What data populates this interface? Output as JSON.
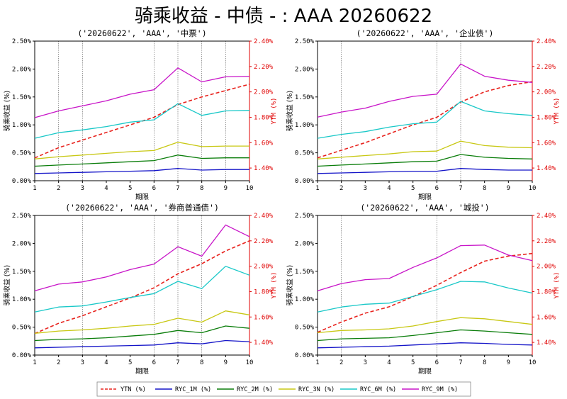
{
  "title": "骑乘收益 - 中债 - : AAA 20260622",
  "colors": {
    "YTN (%)": "#e8231e",
    "RYC_1M (%)": "#1414c8",
    "RYC_2M (%)": "#0a7d0a",
    "RYC_3N (%)": "#c8c814",
    "RYC_6M (%)": "#19c8c8",
    "RYC_9M (%)": "#c814c8"
  },
  "legend": [
    {
      "label": "YTN (%)",
      "style": "dashed"
    },
    {
      "label": "RYC_1M (%)",
      "style": "solid"
    },
    {
      "label": "RYC_2M (%)",
      "style": "solid"
    },
    {
      "label": "RYC_3N (%)",
      "style": "solid"
    },
    {
      "label": "RYC_6M (%)",
      "style": "solid"
    },
    {
      "label": "RYC_9M (%)",
      "style": "solid"
    }
  ],
  "chart_data": [
    {
      "type": "line",
      "title": "('20260622', 'AAA', '中票')",
      "xlabel": "期限",
      "ylabel_left": "骑乘收益 (%)",
      "ylabel_right": "YTM (%)",
      "x": [
        1,
        2,
        3,
        4,
        5,
        6,
        7,
        8,
        9,
        10
      ],
      "xlim": [
        1,
        10
      ],
      "ylim_left": [
        0,
        2.5
      ],
      "ylim_right": [
        1.3,
        2.4
      ],
      "left_ticks": [
        "0.00%",
        "0.50%",
        "1.00%",
        "1.50%",
        "2.00%",
        "2.50%"
      ],
      "right_ticks": [
        "1.40%",
        "1.60%",
        "1.80%",
        "2.00%",
        "2.20%",
        "2.40%"
      ],
      "vlines": [
        2,
        3,
        6,
        7,
        8,
        9
      ],
      "series": [
        {
          "name": "YTN (%)",
          "axis": "right",
          "values": [
            1.48,
            1.56,
            1.62,
            1.68,
            1.74,
            1.8,
            1.9,
            1.96,
            2.01,
            2.06
          ]
        },
        {
          "name": "RYC_1M (%)",
          "axis": "left",
          "values": [
            0.13,
            0.14,
            0.15,
            0.16,
            0.17,
            0.18,
            0.22,
            0.19,
            0.2,
            0.2
          ]
        },
        {
          "name": "RYC_2M (%)",
          "axis": "left",
          "values": [
            0.26,
            0.28,
            0.3,
            0.32,
            0.34,
            0.36,
            0.46,
            0.4,
            0.41,
            0.41
          ]
        },
        {
          "name": "RYC_3N (%)",
          "axis": "left",
          "values": [
            0.39,
            0.43,
            0.46,
            0.49,
            0.52,
            0.54,
            0.69,
            0.61,
            0.62,
            0.62
          ]
        },
        {
          "name": "RYC_6M (%)",
          "axis": "left",
          "values": [
            0.76,
            0.86,
            0.91,
            0.97,
            1.05,
            1.09,
            1.38,
            1.17,
            1.25,
            1.26
          ]
        },
        {
          "name": "RYC_9M (%)",
          "axis": "left",
          "values": [
            1.13,
            1.25,
            1.34,
            1.43,
            1.55,
            1.63,
            2.02,
            1.77,
            1.86,
            1.87
          ]
        }
      ]
    },
    {
      "type": "line",
      "title": "('20260622', 'AAA', '企业债')",
      "xlabel": "期限",
      "ylabel_left": "骑乘收益 (%)",
      "ylabel_right": "YTM (%)",
      "x": [
        1,
        2,
        3,
        4,
        5,
        6,
        7,
        8,
        9,
        10
      ],
      "xlim": [
        1,
        10
      ],
      "ylim_left": [
        0,
        2.5
      ],
      "ylim_right": [
        1.3,
        2.4
      ],
      "left_ticks": [
        "0.00%",
        "0.50%",
        "1.00%",
        "1.50%",
        "2.00%",
        "2.50%"
      ],
      "right_ticks": [
        "1.40%",
        "1.60%",
        "1.80%",
        "2.00%",
        "2.20%",
        "2.40%"
      ],
      "vlines": [
        2,
        6,
        7
      ],
      "series": [
        {
          "name": "YTN (%)",
          "axis": "right",
          "values": [
            1.48,
            1.54,
            1.6,
            1.67,
            1.74,
            1.8,
            1.92,
            2.0,
            2.05,
            2.08
          ]
        },
        {
          "name": "RYC_1M (%)",
          "axis": "left",
          "values": [
            0.13,
            0.14,
            0.15,
            0.16,
            0.17,
            0.17,
            0.22,
            0.2,
            0.19,
            0.19
          ]
        },
        {
          "name": "RYC_2M (%)",
          "axis": "left",
          "values": [
            0.26,
            0.28,
            0.3,
            0.32,
            0.34,
            0.35,
            0.47,
            0.42,
            0.4,
            0.39
          ]
        },
        {
          "name": "RYC_3N (%)",
          "axis": "left",
          "values": [
            0.39,
            0.42,
            0.45,
            0.48,
            0.52,
            0.53,
            0.71,
            0.63,
            0.6,
            0.59
          ]
        },
        {
          "name": "RYC_6M (%)",
          "axis": "left",
          "values": [
            0.76,
            0.83,
            0.88,
            0.96,
            1.02,
            1.05,
            1.42,
            1.25,
            1.2,
            1.17
          ]
        },
        {
          "name": "RYC_9M (%)",
          "axis": "left",
          "values": [
            1.14,
            1.23,
            1.3,
            1.42,
            1.51,
            1.55,
            2.09,
            1.87,
            1.8,
            1.76
          ]
        }
      ]
    },
    {
      "type": "line",
      "title": "('20260622', 'AAA', '券商普通债')",
      "xlabel": "期限",
      "ylabel_left": "骑乘收益 (%)",
      "ylabel_right": "YTM (%)",
      "x": [
        1,
        2,
        3,
        4,
        5,
        6,
        7,
        8,
        9,
        10
      ],
      "xlim": [
        1,
        10
      ],
      "ylim_left": [
        0,
        2.5
      ],
      "ylim_right": [
        1.3,
        2.4
      ],
      "left_ticks": [
        "0.00%",
        "0.50%",
        "1.00%",
        "1.50%",
        "2.00%",
        "2.50%"
      ],
      "right_ticks": [
        "1.40%",
        "1.60%",
        "1.80%",
        "2.00%",
        "2.20%",
        "2.40%"
      ],
      "vlines": [
        3,
        6,
        7,
        8
      ],
      "series": [
        {
          "name": "YTN (%)",
          "axis": "right",
          "values": [
            1.47,
            1.55,
            1.61,
            1.68,
            1.75,
            1.83,
            1.94,
            2.02,
            2.12,
            2.2
          ]
        },
        {
          "name": "RYC_1M (%)",
          "axis": "left",
          "values": [
            0.13,
            0.14,
            0.15,
            0.16,
            0.17,
            0.18,
            0.22,
            0.2,
            0.26,
            0.24
          ]
        },
        {
          "name": "RYC_2M (%)",
          "axis": "left",
          "values": [
            0.26,
            0.28,
            0.29,
            0.31,
            0.34,
            0.37,
            0.44,
            0.4,
            0.52,
            0.48
          ]
        },
        {
          "name": "RYC_3N (%)",
          "axis": "left",
          "values": [
            0.39,
            0.43,
            0.45,
            0.48,
            0.52,
            0.55,
            0.66,
            0.59,
            0.79,
            0.72
          ]
        },
        {
          "name": "RYC_6M (%)",
          "axis": "left",
          "values": [
            0.77,
            0.86,
            0.88,
            0.95,
            1.03,
            1.1,
            1.32,
            1.19,
            1.59,
            1.43
          ]
        },
        {
          "name": "RYC_9M (%)",
          "axis": "left",
          "values": [
            1.15,
            1.27,
            1.31,
            1.4,
            1.53,
            1.63,
            1.94,
            1.77,
            2.33,
            2.12
          ]
        }
      ]
    },
    {
      "type": "line",
      "title": "('20260622', 'AAA', '城投')",
      "xlabel": "期限",
      "ylabel_left": "骑乘收益 (%)",
      "ylabel_right": "YTM (%)",
      "x": [
        1,
        2,
        3,
        4,
        5,
        6,
        7,
        8,
        9,
        10
      ],
      "xlim": [
        1,
        10
      ],
      "ylim_left": [
        0,
        2.5
      ],
      "ylim_right": [
        1.3,
        2.4
      ],
      "left_ticks": [
        "0.00%",
        "0.50%",
        "1.00%",
        "1.50%",
        "2.00%",
        "2.50%"
      ],
      "right_ticks": [
        "1.40%",
        "1.60%",
        "1.80%",
        "2.00%",
        "2.20%",
        "2.40%"
      ],
      "vlines": [
        2,
        6
      ],
      "series": [
        {
          "name": "YTN (%)",
          "axis": "right",
          "values": [
            1.48,
            1.56,
            1.63,
            1.68,
            1.76,
            1.85,
            1.95,
            2.04,
            2.08,
            2.1
          ]
        },
        {
          "name": "RYC_1M (%)",
          "axis": "left",
          "values": [
            0.13,
            0.14,
            0.15,
            0.16,
            0.18,
            0.2,
            0.22,
            0.21,
            0.19,
            0.18
          ]
        },
        {
          "name": "RYC_2M (%)",
          "axis": "left",
          "values": [
            0.26,
            0.29,
            0.3,
            0.31,
            0.35,
            0.4,
            0.45,
            0.43,
            0.4,
            0.37
          ]
        },
        {
          "name": "RYC_3N (%)",
          "axis": "left",
          "values": [
            0.4,
            0.44,
            0.45,
            0.47,
            0.52,
            0.6,
            0.67,
            0.65,
            0.6,
            0.55
          ]
        },
        {
          "name": "RYC_6M (%)",
          "axis": "left",
          "values": [
            0.77,
            0.86,
            0.91,
            0.93,
            1.05,
            1.17,
            1.32,
            1.31,
            1.2,
            1.11
          ]
        },
        {
          "name": "RYC_9M (%)",
          "axis": "left",
          "values": [
            1.15,
            1.28,
            1.35,
            1.37,
            1.57,
            1.74,
            1.96,
            1.97,
            1.79,
            1.69
          ]
        }
      ]
    }
  ]
}
